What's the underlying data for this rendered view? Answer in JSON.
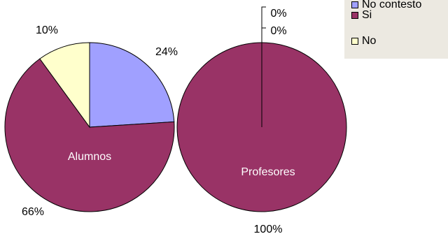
{
  "chart_data": {
    "type": "pie",
    "legend_position": "top-right",
    "legend": [
      {
        "label": "No contesto",
        "color": "#a0a0ff"
      },
      {
        "label": "Si",
        "color": "#993366"
      },
      {
        "label": "No",
        "color": "#ffffcc"
      }
    ],
    "pies": [
      {
        "name": "Alumnos",
        "slices": [
          {
            "category": "No contesto",
            "value": 24,
            "label": "24%",
            "color": "#a0a0ff"
          },
          {
            "category": "Si",
            "value": 66,
            "label": "66%",
            "color": "#993366"
          },
          {
            "category": "No",
            "value": 10,
            "label": "10%",
            "color": "#ffffcc"
          }
        ]
      },
      {
        "name": "Profesores",
        "slices": [
          {
            "category": "No contesto",
            "value": 0,
            "label": "0%",
            "color": "#a0a0ff"
          },
          {
            "category": "Si",
            "value": 100,
            "label": "100%",
            "color": "#993366"
          },
          {
            "category": "No",
            "value": 0,
            "label": "0%",
            "color": "#ffffcc"
          }
        ]
      }
    ]
  }
}
